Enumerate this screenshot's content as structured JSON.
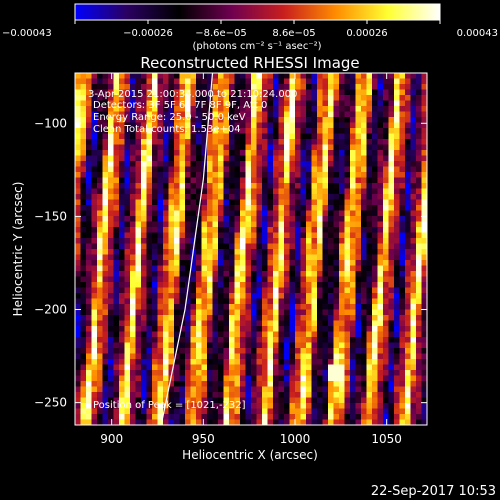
{
  "title": "Reconstructed RHESSI Image",
  "colorbar": {
    "label": "(photons cm⁻² s⁻¹ asec⁻²)",
    "min": -0.00043,
    "max": 0.00043,
    "tick_labels": [
      "−0.00043",
      "−0.00026",
      "−8.6e−05",
      "8.6e−05",
      "0.00026",
      "0.00043"
    ],
    "colormap": [
      "#0000ff",
      "#2a0060",
      "#000000",
      "#6e0050",
      "#c81e1e",
      "#ff8c00",
      "#ffff32",
      "#ffffff"
    ]
  },
  "annotations": {
    "time_range": "3-Apr-2015 21:00:34.000 to 21:10:24.000",
    "detectors": "Detectors: 3F 5F 6F 7F 8F 9F, Att 0",
    "energy_range": "Energy Range: 25.0 - 50.0 keV",
    "method": "Clean    Total counts: 1.53e+04",
    "peak": "Position of Peak = [1021,-232]"
  },
  "timestamp": "22-Sep-2017 10:53",
  "chart_data": {
    "type": "heatmap",
    "title": "Reconstructed RHESSI Image",
    "xlabel": "Heliocentric X (arcsec)",
    "ylabel": "Heliocentric Y (arcsec)",
    "xlim": [
      880,
      1072
    ],
    "ylim": [
      -262,
      -73
    ],
    "x_ticks": [
      900,
      950,
      1000,
      1050
    ],
    "y_ticks": [
      -100,
      -150,
      -200,
      -250
    ],
    "x_tick_labels": [
      "900",
      "950",
      "1000",
      "1050"
    ],
    "y_tick_labels": [
      "−100",
      "−150",
      "−200",
      "−250"
    ],
    "limb_line": [
      [
        955,
        -73
      ],
      [
        950,
        -130
      ],
      [
        940,
        -200
      ],
      [
        927,
        -262
      ]
    ],
    "peak": [
      1021,
      -232
    ]
  }
}
